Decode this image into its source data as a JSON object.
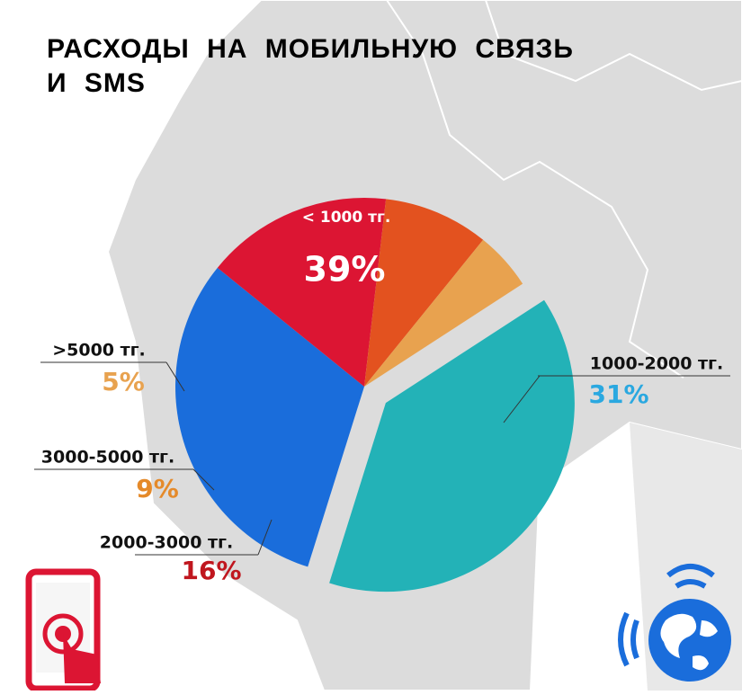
{
  "chart_data": {
    "type": "pie",
    "title": [
      "РАСХОДЫ НА МОБИЛЬНУЮ СВЯЗЬ",
      "И SMS"
    ],
    "categories": [
      "< 1000 тг.",
      "1000-2000 тг.",
      "2000-3000 тг.",
      "3000-5000 тг.",
      ">5000 тг."
    ],
    "values": [
      39,
      31,
      16,
      9,
      5
    ],
    "value_labels": [
      "39%",
      "31%",
      "16%",
      "9%",
      "5%"
    ],
    "colors": [
      "#23b2b7",
      "#1a6ddb",
      "#dc1533",
      "#e3521f",
      "#e8a24f"
    ]
  }
}
